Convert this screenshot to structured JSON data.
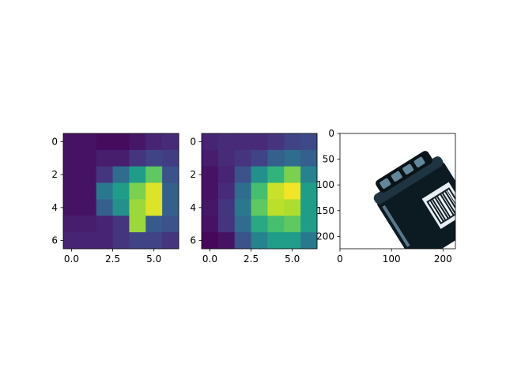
{
  "chart_data": [
    {
      "type": "heatmap",
      "colormap": "viridis",
      "xlim": [
        -0.5,
        6.5
      ],
      "ylim": [
        6.5,
        -0.5
      ],
      "xticks": [
        "0.0",
        "2.5",
        "5.0"
      ],
      "yticks": [
        "0",
        "2",
        "4",
        "6"
      ],
      "values": [
        [
          0.05,
          0.05,
          0.03,
          0.03,
          0.06,
          0.1,
          0.12
        ],
        [
          0.05,
          0.05,
          0.08,
          0.08,
          0.15,
          0.2,
          0.18
        ],
        [
          0.05,
          0.05,
          0.15,
          0.35,
          0.55,
          0.75,
          0.25
        ],
        [
          0.05,
          0.05,
          0.4,
          0.55,
          0.8,
          0.95,
          0.3
        ],
        [
          0.05,
          0.05,
          0.3,
          0.5,
          0.85,
          0.95,
          0.3
        ],
        [
          0.08,
          0.08,
          0.1,
          0.15,
          0.85,
          0.28,
          0.25
        ],
        [
          0.1,
          0.1,
          0.1,
          0.15,
          0.2,
          0.2,
          0.15
        ]
      ]
    },
    {
      "type": "heatmap",
      "colormap": "viridis",
      "xlim": [
        -0.5,
        6.5
      ],
      "ylim": [
        6.5,
        -0.5
      ],
      "xticks": [
        "0.0",
        "2.5",
        "5.0"
      ],
      "yticks": [
        "0",
        "2",
        "4",
        "6"
      ],
      "values": [
        [
          0.1,
          0.12,
          0.12,
          0.12,
          0.15,
          0.2,
          0.22
        ],
        [
          0.08,
          0.12,
          0.15,
          0.2,
          0.3,
          0.35,
          0.3
        ],
        [
          0.05,
          0.1,
          0.25,
          0.5,
          0.65,
          0.8,
          0.45
        ],
        [
          0.05,
          0.12,
          0.35,
          0.7,
          0.92,
          0.98,
          0.55
        ],
        [
          0.06,
          0.15,
          0.4,
          0.75,
          0.9,
          0.88,
          0.55
        ],
        [
          0.05,
          0.15,
          0.35,
          0.6,
          0.7,
          0.75,
          0.55
        ],
        [
          0.02,
          0.05,
          0.25,
          0.45,
          0.55,
          0.55,
          0.4
        ]
      ]
    },
    {
      "type": "image",
      "xlim": [
        0,
        224
      ],
      "ylim": [
        224,
        0
      ],
      "xticks": [
        "0",
        "100",
        "200"
      ],
      "yticks": [
        "0",
        "50",
        "100",
        "150",
        "200"
      ]
    }
  ]
}
